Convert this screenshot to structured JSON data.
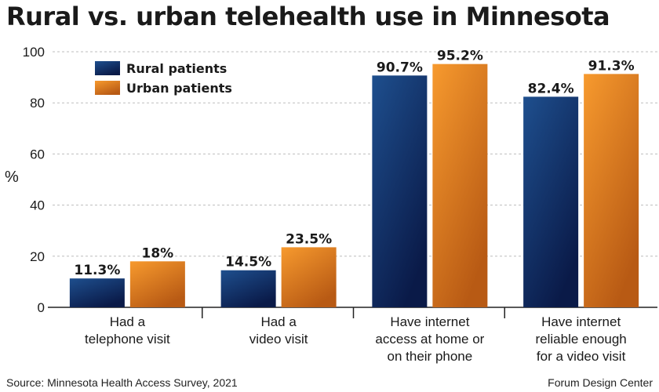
{
  "title": "Rural vs. urban telehealth use in Minnesota",
  "source": "Source: Minnesota Health Access Survey, 2021",
  "credit": "Forum Design Center",
  "colors": {
    "rural_top": "#1e4f8e",
    "rural_bottom": "#0a1a48",
    "urban_top": "#f79a2e",
    "urban_bottom": "#b85a14",
    "grid": "#bdbdbd",
    "text": "#1a1a1a"
  },
  "chart_data": {
    "type": "bar",
    "title": "Rural vs. urban telehealth use in Minnesota",
    "ylabel": "%",
    "xlabel": "",
    "ylim": [
      0,
      100
    ],
    "yticks": [
      0,
      20,
      40,
      60,
      80,
      100
    ],
    "grid": true,
    "legend_position": "top-left",
    "categories": [
      [
        "Had a",
        "telephone visit"
      ],
      [
        "Had a",
        "video visit"
      ],
      [
        "Have internet",
        "access at home or",
        "on their phone"
      ],
      [
        "Have internet",
        "reliable enough",
        "for a video visit"
      ]
    ],
    "series": [
      {
        "name": "Rural patients",
        "values": [
          11.3,
          14.5,
          90.7,
          82.4
        ],
        "labels": [
          "11.3%",
          "14.5%",
          "90.7%",
          "82.4%"
        ]
      },
      {
        "name": "Urban patients",
        "values": [
          18,
          23.5,
          95.2,
          91.3
        ],
        "labels": [
          "18%",
          "23.5%",
          "95.2%",
          "91.3%"
        ]
      }
    ]
  }
}
